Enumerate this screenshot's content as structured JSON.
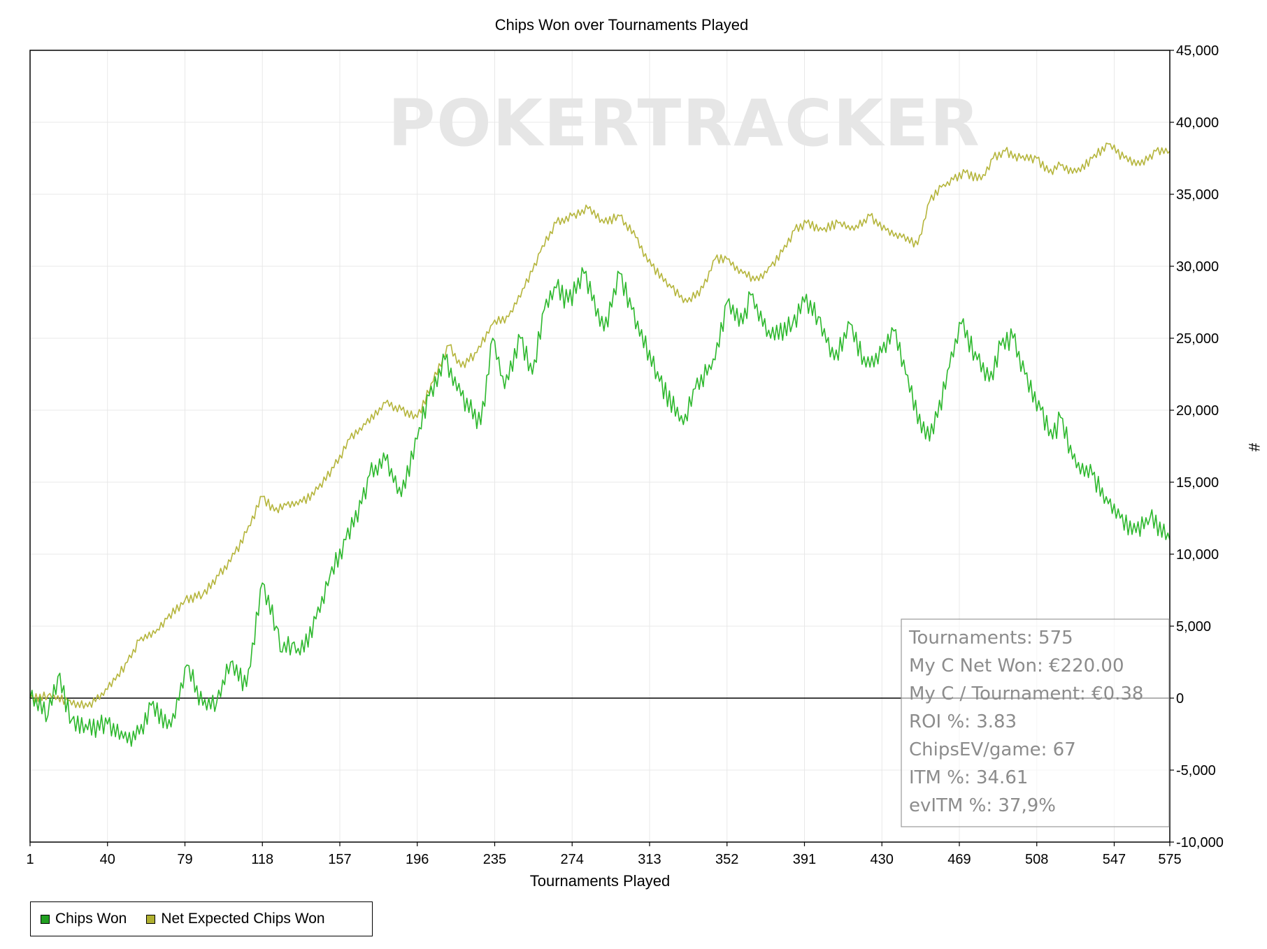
{
  "chart_data": {
    "type": "line",
    "title": "Chips Won over Tournaments Played",
    "xlabel": "Tournaments Played",
    "ylabel": "#",
    "xlim": [
      1,
      575
    ],
    "ylim": [
      -10000,
      45000
    ],
    "x_ticks": [
      "1",
      "40",
      "79",
      "118",
      "157",
      "196",
      "235",
      "274",
      "313",
      "352",
      "391",
      "430",
      "469",
      "508",
      "547",
      "575"
    ],
    "y_ticks": [
      "-10,000",
      "-5,000",
      "0",
      "5,000",
      "10,000",
      "15,000",
      "20,000",
      "25,000",
      "30,000",
      "35,000",
      "40,000",
      "45,000"
    ],
    "grid": true,
    "watermark": "POKERTRACKER",
    "legend_position": "bottom-left",
    "series": [
      {
        "name": "Chips Won",
        "color": "#2db82d",
        "points": [
          [
            1,
            0
          ],
          [
            10,
            -1200
          ],
          [
            15,
            1500
          ],
          [
            22,
            -1500
          ],
          [
            30,
            -2200
          ],
          [
            40,
            -1800
          ],
          [
            48,
            -2800
          ],
          [
            56,
            -2500
          ],
          [
            62,
            -500
          ],
          [
            72,
            -2000
          ],
          [
            80,
            2300
          ],
          [
            88,
            -500
          ],
          [
            95,
            -300
          ],
          [
            102,
            2500
          ],
          [
            110,
            800
          ],
          [
            118,
            8000
          ],
          [
            125,
            5000
          ],
          [
            128,
            3200
          ],
          [
            133,
            3800
          ],
          [
            137,
            3000
          ],
          [
            145,
            5500
          ],
          [
            152,
            8500
          ],
          [
            160,
            11000
          ],
          [
            168,
            13500
          ],
          [
            172,
            15500
          ],
          [
            180,
            16500
          ],
          [
            188,
            14000
          ],
          [
            196,
            18000
          ],
          [
            202,
            21000
          ],
          [
            210,
            23500
          ],
          [
            218,
            21000
          ],
          [
            228,
            19000
          ],
          [
            234,
            25000
          ],
          [
            240,
            21500
          ],
          [
            248,
            25000
          ],
          [
            254,
            22500
          ],
          [
            260,
            27000
          ],
          [
            266,
            28500
          ],
          [
            272,
            27500
          ],
          [
            280,
            29500
          ],
          [
            290,
            25500
          ],
          [
            298,
            29500
          ],
          [
            304,
            27000
          ],
          [
            318,
            22000
          ],
          [
            330,
            19000
          ],
          [
            336,
            21500
          ],
          [
            346,
            23500
          ],
          [
            352,
            27500
          ],
          [
            360,
            26000
          ],
          [
            364,
            28000
          ],
          [
            374,
            25000
          ],
          [
            385,
            26000
          ],
          [
            391,
            27500
          ],
          [
            398,
            26500
          ],
          [
            406,
            23500
          ],
          [
            414,
            26000
          ],
          [
            422,
            23000
          ],
          [
            430,
            24000
          ],
          [
            436,
            25500
          ],
          [
            442,
            22500
          ],
          [
            452,
            18000
          ],
          [
            458,
            19500
          ],
          [
            464,
            23000
          ],
          [
            470,
            26000
          ],
          [
            478,
            23500
          ],
          [
            484,
            22000
          ],
          [
            490,
            24500
          ],
          [
            496,
            25000
          ],
          [
            502,
            22500
          ],
          [
            510,
            20000
          ],
          [
            516,
            18000
          ],
          [
            520,
            19500
          ],
          [
            528,
            16000
          ],
          [
            536,
            15500
          ],
          [
            544,
            13500
          ],
          [
            550,
            12500
          ],
          [
            558,
            11500
          ],
          [
            565,
            12500
          ],
          [
            575,
            11000
          ]
        ]
      },
      {
        "name": "Net Expected Chips Won",
        "color": "#b5b53c",
        "points": [
          [
            1,
            0
          ],
          [
            10,
            200
          ],
          [
            20,
            -200
          ],
          [
            30,
            -600
          ],
          [
            40,
            600
          ],
          [
            50,
            2500
          ],
          [
            56,
            4000
          ],
          [
            64,
            4500
          ],
          [
            70,
            5500
          ],
          [
            79,
            6800
          ],
          [
            88,
            7200
          ],
          [
            96,
            8500
          ],
          [
            104,
            10000
          ],
          [
            110,
            11500
          ],
          [
            118,
            14000
          ],
          [
            124,
            13000
          ],
          [
            130,
            13400
          ],
          [
            138,
            13600
          ],
          [
            146,
            14500
          ],
          [
            154,
            16000
          ],
          [
            162,
            18000
          ],
          [
            170,
            19000
          ],
          [
            180,
            20500
          ],
          [
            188,
            20000
          ],
          [
            196,
            19500
          ],
          [
            204,
            22000
          ],
          [
            212,
            24500
          ],
          [
            218,
            23000
          ],
          [
            226,
            24000
          ],
          [
            234,
            26000
          ],
          [
            242,
            26500
          ],
          [
            250,
            28500
          ],
          [
            258,
            31000
          ],
          [
            266,
            33000
          ],
          [
            274,
            33500
          ],
          [
            282,
            34000
          ],
          [
            290,
            33000
          ],
          [
            298,
            33500
          ],
          [
            306,
            32000
          ],
          [
            314,
            30000
          ],
          [
            324,
            28500
          ],
          [
            332,
            27500
          ],
          [
            340,
            28500
          ],
          [
            346,
            30500
          ],
          [
            352,
            30500
          ],
          [
            360,
            29500
          ],
          [
            368,
            29000
          ],
          [
            374,
            30000
          ],
          [
            380,
            31000
          ],
          [
            386,
            32500
          ],
          [
            392,
            33000
          ],
          [
            400,
            32500
          ],
          [
            408,
            33000
          ],
          [
            416,
            32500
          ],
          [
            424,
            33500
          ],
          [
            432,
            32500
          ],
          [
            440,
            32000
          ],
          [
            448,
            31500
          ],
          [
            454,
            34500
          ],
          [
            460,
            35500
          ],
          [
            466,
            36000
          ],
          [
            472,
            36500
          ],
          [
            480,
            36000
          ],
          [
            486,
            37500
          ],
          [
            492,
            38000
          ],
          [
            500,
            37500
          ],
          [
            508,
            37500
          ],
          [
            514,
            36500
          ],
          [
            520,
            37000
          ],
          [
            528,
            36500
          ],
          [
            536,
            37500
          ],
          [
            544,
            38500
          ],
          [
            552,
            37500
          ],
          [
            560,
            37000
          ],
          [
            568,
            38000
          ],
          [
            575,
            38000
          ]
        ]
      }
    ],
    "stats_box": [
      "Tournaments: 575",
      "My C Net Won: €220.00",
      "My C / Tournament: €0.38",
      "ROI %: 3.83",
      "ChipsEV/game: 67",
      "ITM %: 34.61",
      "evITM %: 37,9%"
    ]
  },
  "legend": {
    "items": [
      {
        "label": "Chips Won",
        "color": "#22a022"
      },
      {
        "label": "Net Expected Chips Won",
        "color": "#b0b030"
      }
    ]
  }
}
